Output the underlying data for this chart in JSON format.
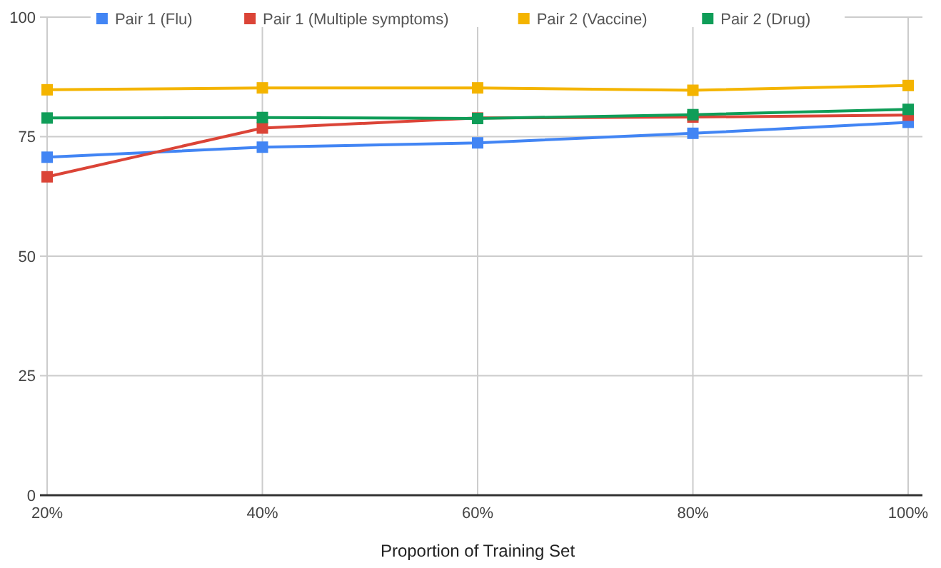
{
  "chart_data": {
    "type": "line",
    "xlabel": "Proportion of Training Set",
    "categories": [
      "20%",
      "40%",
      "60%",
      "80%",
      "100%"
    ],
    "series": [
      {
        "name": "Pair 1 (Flu)",
        "color": "#4285f4",
        "values": [
          70.7,
          72.8,
          73.7,
          75.7,
          78.0
        ]
      },
      {
        "name": "Pair 1 (Multiple symptoms)",
        "color": "#db4437",
        "values": [
          66.6,
          76.8,
          78.9,
          79.1,
          79.5
        ]
      },
      {
        "name": "Pair 2 (Vaccine)",
        "color": "#f4b400",
        "values": [
          84.8,
          85.2,
          85.2,
          84.7,
          85.7
        ]
      },
      {
        "name": "Pair 2 (Drug)",
        "color": "#0f9d58",
        "values": [
          78.9,
          79.0,
          78.8,
          79.6,
          80.7
        ]
      }
    ],
    "ylim": [
      0,
      100
    ],
    "yticks": [
      0,
      25,
      50,
      75,
      100
    ],
    "grid": true,
    "legend": "top",
    "marker": "square",
    "line_style": "solid"
  }
}
